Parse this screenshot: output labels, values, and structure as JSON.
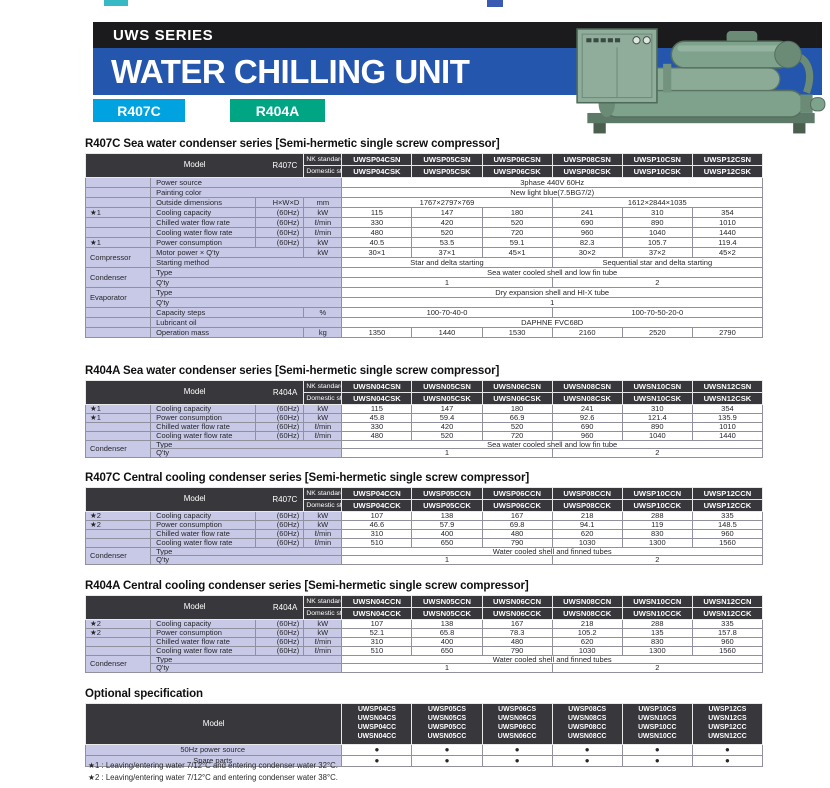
{
  "header": {
    "series": "UWS SERIES",
    "title": "WATER CHILLING UNIT",
    "badges": [
      {
        "label": "R407C",
        "color": "#00a2df"
      },
      {
        "label": "R404A",
        "color": "#00a584"
      }
    ]
  },
  "spec_tables": [
    {
      "title": "R407C Sea water condenser series [Semi-hermetic single screw compressor]",
      "model_label": "Model",
      "refrigerant": "R407C",
      "nk_label": "NK standard",
      "domestic_label": "Domestic standard",
      "nk_models": [
        "UWSP04CSN",
        "UWSP05CSN",
        "UWSP06CSN",
        "UWSP08CSN",
        "UWSP10CSN",
        "UWSP12CSN"
      ],
      "domestic_models": [
        "UWSP04CSK",
        "UWSP05CSK",
        "UWSP06CSK",
        "UWSP08CSK",
        "UWSP10CSK",
        "UWSP12CSK"
      ],
      "compact": false,
      "rows": [
        [
          [
            "",
            "g"
          ],
          [
            "Power source",
            "l",
            3
          ],
          [
            "3phase 440V  60Hz",
            "v",
            6
          ]
        ],
        [
          [
            "",
            "g"
          ],
          [
            "Painting color",
            "l",
            3
          ],
          [
            "New light blue(7.5BG7/2)",
            "v",
            6
          ]
        ],
        [
          [
            "",
            "g"
          ],
          [
            "Outside dimensions",
            "l"
          ],
          [
            "H×W×D",
            "s"
          ],
          [
            "mm",
            "u"
          ],
          [
            "1767×2797×769",
            "v",
            3
          ],
          [
            "1612×2844×1035",
            "v",
            3
          ]
        ],
        [
          [
            "★1",
            "g"
          ],
          [
            "Cooling capacity",
            "l"
          ],
          [
            "(60Hz)",
            "s"
          ],
          [
            "kW",
            "u"
          ],
          [
            "115",
            "v"
          ],
          [
            "147",
            "v"
          ],
          [
            "180",
            "v"
          ],
          [
            "241",
            "v"
          ],
          [
            "310",
            "v"
          ],
          [
            "354",
            "v"
          ]
        ],
        [
          [
            "",
            "g"
          ],
          [
            "Chilled water flow rate",
            "l"
          ],
          [
            "(60Hz)",
            "s"
          ],
          [
            "ℓ/min",
            "u"
          ],
          [
            "330",
            "v"
          ],
          [
            "420",
            "v"
          ],
          [
            "520",
            "v"
          ],
          [
            "690",
            "v"
          ],
          [
            "890",
            "v"
          ],
          [
            "1010",
            "v"
          ]
        ],
        [
          [
            "",
            "g"
          ],
          [
            "Cooling water flow rate",
            "l"
          ],
          [
            "(60Hz)",
            "s"
          ],
          [
            "ℓ/min",
            "u"
          ],
          [
            "480",
            "v"
          ],
          [
            "520",
            "v"
          ],
          [
            "720",
            "v"
          ],
          [
            "960",
            "v"
          ],
          [
            "1040",
            "v"
          ],
          [
            "1440",
            "v"
          ]
        ],
        [
          [
            "★1",
            "g"
          ],
          [
            "Power consumption",
            "l"
          ],
          [
            "(60Hz)",
            "s"
          ],
          [
            "kW",
            "u"
          ],
          [
            "40.5",
            "v"
          ],
          [
            "53.5",
            "v"
          ],
          [
            "59.1",
            "v"
          ],
          [
            "82.3",
            "v"
          ],
          [
            "105.7",
            "v"
          ],
          [
            "119.4",
            "v"
          ]
        ],
        [
          [
            "Compressor",
            "g",
            1,
            2
          ],
          [
            "Motor power × Q'ty",
            "l",
            2
          ],
          [
            "kW",
            "u"
          ],
          [
            "30×1",
            "v"
          ],
          [
            "37×1",
            "v"
          ],
          [
            "45×1",
            "v"
          ],
          [
            "30×2",
            "v"
          ],
          [
            "37×2",
            "v"
          ],
          [
            "45×2",
            "v"
          ]
        ],
        [
          [
            "Starting method",
            "l",
            3
          ],
          [
            "Star and delta starting",
            "v",
            3
          ],
          [
            "Sequential star and delta starting",
            "v",
            3
          ]
        ],
        [
          [
            "Condenser",
            "g",
            1,
            2
          ],
          [
            "Type",
            "l",
            3
          ],
          [
            "Sea water cooled shell and low fin tube",
            "v",
            6
          ]
        ],
        [
          [
            "Q'ty",
            "l",
            3
          ],
          [
            "1",
            "v",
            3
          ],
          [
            "2",
            "v",
            3
          ]
        ],
        [
          [
            "Evaporator",
            "g",
            1,
            2
          ],
          [
            "Type",
            "l",
            3
          ],
          [
            "Dry expansion shell and HI-X tube",
            "v",
            6
          ]
        ],
        [
          [
            "Q'ty",
            "l",
            3
          ],
          [
            "1",
            "v",
            6
          ]
        ],
        [
          [
            "",
            "g"
          ],
          [
            "Capacity steps",
            "l",
            2
          ],
          [
            "%",
            "u"
          ],
          [
            "100-70-40-0",
            "v",
            3
          ],
          [
            "100-70-50-20-0",
            "v",
            3
          ]
        ],
        [
          [
            "",
            "g"
          ],
          [
            "Lubricant oil",
            "l",
            3
          ],
          [
            "DAPHNE FVC68D",
            "v",
            6
          ]
        ],
        [
          [
            "",
            "g"
          ],
          [
            "Operation mass",
            "l",
            2
          ],
          [
            "kg",
            "u"
          ],
          [
            "1350",
            "v"
          ],
          [
            "1440",
            "v"
          ],
          [
            "1530",
            "v"
          ],
          [
            "2160",
            "v"
          ],
          [
            "2520",
            "v"
          ],
          [
            "2790",
            "v"
          ]
        ]
      ]
    },
    {
      "title": "R404A Sea water condenser series [Semi-hermetic single screw compressor]",
      "model_label": "Model",
      "refrigerant": "R404A",
      "nk_label": "NK standard",
      "domestic_label": "Domestic standard",
      "nk_models": [
        "UWSN04CSN",
        "UWSN05CSN",
        "UWSN06CSN",
        "UWSN08CSN",
        "UWSN10CSN",
        "UWSN12CSN"
      ],
      "domestic_models": [
        "UWSN04CSK",
        "UWSN05CSK",
        "UWSN06CSK",
        "UWSN08CSK",
        "UWSN10CSK",
        "UWSN12CSK"
      ],
      "compact": true,
      "rows": [
        [
          [
            "★1",
            "g"
          ],
          [
            "Cooling capacity",
            "l"
          ],
          [
            "(60Hz)",
            "s"
          ],
          [
            "kW",
            "u"
          ],
          [
            "115",
            "v"
          ],
          [
            "147",
            "v"
          ],
          [
            "180",
            "v"
          ],
          [
            "241",
            "v"
          ],
          [
            "310",
            "v"
          ],
          [
            "354",
            "v"
          ]
        ],
        [
          [
            "★1",
            "g"
          ],
          [
            "Power consumption",
            "l"
          ],
          [
            "(60Hz)",
            "s"
          ],
          [
            "kW",
            "u"
          ],
          [
            "45.8",
            "v"
          ],
          [
            "59.4",
            "v"
          ],
          [
            "66.9",
            "v"
          ],
          [
            "92.6",
            "v"
          ],
          [
            "121.4",
            "v"
          ],
          [
            "135.9",
            "v"
          ]
        ],
        [
          [
            "",
            "g"
          ],
          [
            "Chilled water flow rate",
            "l"
          ],
          [
            "(60Hz)",
            "s"
          ],
          [
            "ℓ/min",
            "u"
          ],
          [
            "330",
            "v"
          ],
          [
            "420",
            "v"
          ],
          [
            "520",
            "v"
          ],
          [
            "690",
            "v"
          ],
          [
            "890",
            "v"
          ],
          [
            "1010",
            "v"
          ]
        ],
        [
          [
            "",
            "g"
          ],
          [
            "Cooling water flow rate",
            "l"
          ],
          [
            "(60Hz)",
            "s"
          ],
          [
            "ℓ/min",
            "u"
          ],
          [
            "480",
            "v"
          ],
          [
            "520",
            "v"
          ],
          [
            "720",
            "v"
          ],
          [
            "960",
            "v"
          ],
          [
            "1040",
            "v"
          ],
          [
            "1440",
            "v"
          ]
        ],
        [
          [
            "Condenser",
            "g",
            1,
            2
          ],
          [
            "Type",
            "l",
            3
          ],
          [
            "Sea water cooled shell and low fin tube",
            "v",
            6
          ]
        ],
        [
          [
            "Q'ty",
            "l",
            3
          ],
          [
            "1",
            "v",
            3
          ],
          [
            "2",
            "v",
            3
          ]
        ]
      ]
    },
    {
      "title": "R407C Central cooling condenser series [Semi-hermetic single screw compressor]",
      "model_label": "Model",
      "refrigerant": "R407C",
      "nk_label": "NK standard",
      "domestic_label": "Domestic standard",
      "nk_models": [
        "UWSP04CCN",
        "UWSP05CCN",
        "UWSP06CCN",
        "UWSP08CCN",
        "UWSP10CCN",
        "UWSP12CCN"
      ],
      "domestic_models": [
        "UWSP04CCK",
        "UWSP05CCK",
        "UWSP06CCK",
        "UWSP08CCK",
        "UWSP10CCK",
        "UWSP12CCK"
      ],
      "compact": true,
      "rows": [
        [
          [
            "★2",
            "g"
          ],
          [
            "Cooling capacity",
            "l"
          ],
          [
            "(60Hz)",
            "s"
          ],
          [
            "kW",
            "u"
          ],
          [
            "107",
            "v"
          ],
          [
            "138",
            "v"
          ],
          [
            "167",
            "v"
          ],
          [
            "218",
            "v"
          ],
          [
            "288",
            "v"
          ],
          [
            "335",
            "v"
          ]
        ],
        [
          [
            "★2",
            "g"
          ],
          [
            "Power consumption",
            "l"
          ],
          [
            "(60Hz)",
            "s"
          ],
          [
            "kW",
            "u"
          ],
          [
            "46.6",
            "v"
          ],
          [
            "57.9",
            "v"
          ],
          [
            "69.8",
            "v"
          ],
          [
            "94.1",
            "v"
          ],
          [
            "119",
            "v"
          ],
          [
            "148.5",
            "v"
          ]
        ],
        [
          [
            "",
            "g"
          ],
          [
            "Chilled water flow rate",
            "l"
          ],
          [
            "(60Hz)",
            "s"
          ],
          [
            "ℓ/min",
            "u"
          ],
          [
            "310",
            "v"
          ],
          [
            "400",
            "v"
          ],
          [
            "480",
            "v"
          ],
          [
            "620",
            "v"
          ],
          [
            "830",
            "v"
          ],
          [
            "960",
            "v"
          ]
        ],
        [
          [
            "",
            "g"
          ],
          [
            "Cooling water flow rate",
            "l"
          ],
          [
            "(60Hz)",
            "s"
          ],
          [
            "ℓ/min",
            "u"
          ],
          [
            "510",
            "v"
          ],
          [
            "650",
            "v"
          ],
          [
            "790",
            "v"
          ],
          [
            "1030",
            "v"
          ],
          [
            "1300",
            "v"
          ],
          [
            "1560",
            "v"
          ]
        ],
        [
          [
            "Condenser",
            "g",
            1,
            2
          ],
          [
            "Type",
            "l",
            3
          ],
          [
            "Water cooled shell and finned tubes",
            "v",
            6
          ]
        ],
        [
          [
            "Q'ty",
            "l",
            3
          ],
          [
            "1",
            "v",
            3
          ],
          [
            "2",
            "v",
            3
          ]
        ]
      ]
    },
    {
      "title": "R404A Central cooling condenser series [Semi-hermetic single screw compressor]",
      "model_label": "Model",
      "refrigerant": "R404A",
      "nk_label": "NK standard",
      "domestic_label": "Domestic standard",
      "nk_models": [
        "UWSN04CCN",
        "UWSN05CCN",
        "UWSN06CCN",
        "UWSN08CCN",
        "UWSN10CCN",
        "UWSN12CCN"
      ],
      "domestic_models": [
        "UWSN04CCK",
        "UWSN05CCK",
        "UWSN06CCK",
        "UWSN08CCK",
        "UWSN10CCK",
        "UWSN12CCK"
      ],
      "compact": true,
      "rows": [
        [
          [
            "★2",
            "g"
          ],
          [
            "Cooling capacity",
            "l"
          ],
          [
            "(60Hz)",
            "s"
          ],
          [
            "kW",
            "u"
          ],
          [
            "107",
            "v"
          ],
          [
            "138",
            "v"
          ],
          [
            "167",
            "v"
          ],
          [
            "218",
            "v"
          ],
          [
            "288",
            "v"
          ],
          [
            "335",
            "v"
          ]
        ],
        [
          [
            "★2",
            "g"
          ],
          [
            "Power consumption",
            "l"
          ],
          [
            "(60Hz)",
            "s"
          ],
          [
            "kW",
            "u"
          ],
          [
            "52.1",
            "v"
          ],
          [
            "65.8",
            "v"
          ],
          [
            "78.3",
            "v"
          ],
          [
            "105.2",
            "v"
          ],
          [
            "135",
            "v"
          ],
          [
            "157.8",
            "v"
          ]
        ],
        [
          [
            "",
            "g"
          ],
          [
            "Chilled water flow rate",
            "l"
          ],
          [
            "(60Hz)",
            "s"
          ],
          [
            "ℓ/min",
            "u"
          ],
          [
            "310",
            "v"
          ],
          [
            "400",
            "v"
          ],
          [
            "480",
            "v"
          ],
          [
            "620",
            "v"
          ],
          [
            "830",
            "v"
          ],
          [
            "960",
            "v"
          ]
        ],
        [
          [
            "",
            "g"
          ],
          [
            "Cooling water flow rate",
            "l"
          ],
          [
            "(60Hz)",
            "s"
          ],
          [
            "ℓ/min",
            "u"
          ],
          [
            "510",
            "v"
          ],
          [
            "650",
            "v"
          ],
          [
            "790",
            "v"
          ],
          [
            "1030",
            "v"
          ],
          [
            "1300",
            "v"
          ],
          [
            "1560",
            "v"
          ]
        ],
        [
          [
            "Condenser",
            "g",
            1,
            2
          ],
          [
            "Type",
            "l",
            3
          ],
          [
            "Water cooled shell and finned tubes",
            "v",
            6
          ]
        ],
        [
          [
            "Q'ty",
            "l",
            3
          ],
          [
            "1",
            "v",
            3
          ],
          [
            "2",
            "v",
            3
          ]
        ]
      ]
    }
  ],
  "optional": {
    "title": "Optional specification",
    "model_label": "Model",
    "columns": [
      [
        "UWSP04CS",
        "UWSN04CS",
        "UWSP04CC",
        "UWSN04CC"
      ],
      [
        "UWSP05CS",
        "UWSN05CS",
        "UWSP05CC",
        "UWSN05CC"
      ],
      [
        "UWSP06CS",
        "UWSN06CS",
        "UWSP06CC",
        "UWSN06CC"
      ],
      [
        "UWSP08CS",
        "UWSN08CS",
        "UWSP08CC",
        "UWSN08CC"
      ],
      [
        "UWSP10CS",
        "UWSN10CS",
        "UWSP10CC",
        "UWSN10CC"
      ],
      [
        "UWSP12CS",
        "UWSN12CS",
        "UWSP12CC",
        "UWSN12CC"
      ]
    ],
    "rows": [
      {
        "label": "50Hz power source",
        "values": [
          "●",
          "●",
          "●",
          "●",
          "●",
          "●"
        ]
      },
      {
        "label": "Spare parts",
        "values": [
          "●",
          "●",
          "●",
          "●",
          "●",
          "●"
        ]
      }
    ]
  },
  "footnotes": [
    "★1 : Leaving/entering water 7/12°C and entering condenser water 32°C.",
    "★2 : Leaving/entering water 7/12°C and entering condenser water 38°C."
  ]
}
